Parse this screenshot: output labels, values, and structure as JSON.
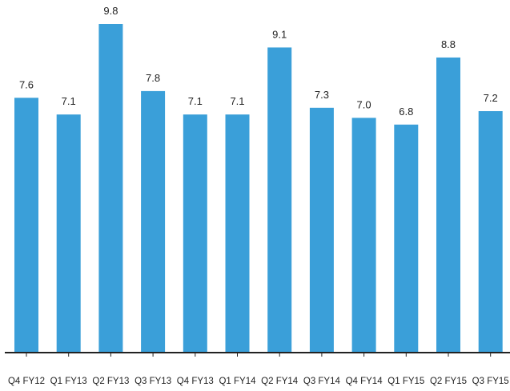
{
  "chart_data": {
    "type": "bar",
    "categories": [
      "Q4 FY12",
      "Q1 FY13",
      "Q2 FY13",
      "Q3 FY13",
      "Q4 FY13",
      "Q1 FY14",
      "Q2 FY14",
      "Q3 FY14",
      "Q4 FY14",
      "Q1 FY15",
      "Q2 FY15",
      "Q3 FY15"
    ],
    "values": [
      7.6,
      7.1,
      9.8,
      7.8,
      7.1,
      7.1,
      9.1,
      7.3,
      7.0,
      6.8,
      8.8,
      7.2
    ],
    "value_labels": [
      "7.6",
      "7.1",
      "9.8",
      "7.8",
      "7.1",
      "7.1",
      "9.1",
      "7.3",
      "7.0",
      "6.8",
      "8.8",
      "7.2"
    ],
    "title": "",
    "xlabel": "",
    "ylabel": "",
    "ylim": [
      0,
      10
    ],
    "grid": false,
    "bar_color": "#3a9fd9"
  }
}
